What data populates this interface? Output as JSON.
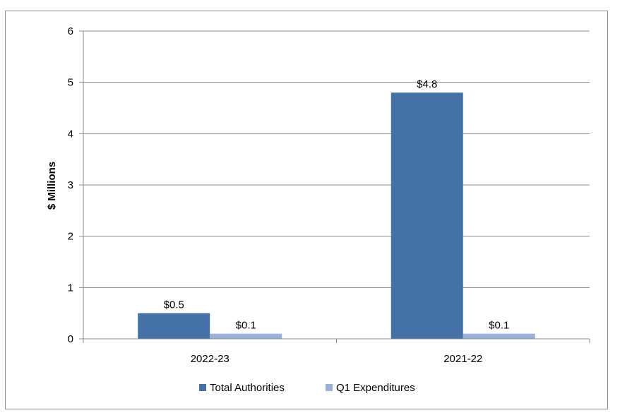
{
  "chart_data": {
    "type": "bar",
    "title": "",
    "xlabel": "",
    "ylabel": "$ Millions",
    "ylim": [
      0,
      6
    ],
    "yticks": [
      "0",
      "1",
      "2",
      "3",
      "4",
      "5",
      "6"
    ],
    "categories": [
      "2022-23",
      "2021-22"
    ],
    "series": [
      {
        "name": "Total Authorities",
        "values": [
          0.5,
          4.8
        ],
        "labels": [
          "$0.5",
          "$4.8"
        ],
        "color": "#4472a8"
      },
      {
        "name": "Q1 Expenditures",
        "values": [
          0.1,
          0.1
        ],
        "labels": [
          "$0.1",
          "$0.1"
        ],
        "color": "#97b1d9"
      }
    ],
    "grid": true,
    "legend": "bottom"
  }
}
